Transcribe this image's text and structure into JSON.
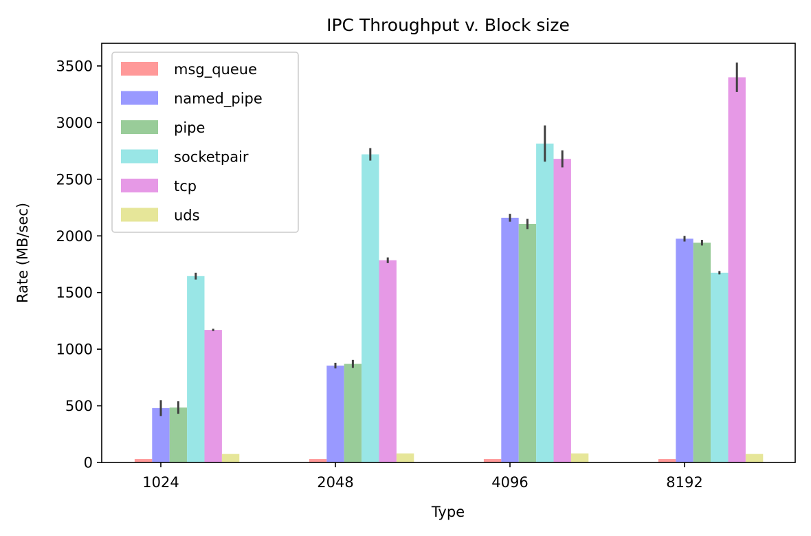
{
  "chart_data": {
    "type": "bar",
    "title": "IPC Throughput v. Block size",
    "xlabel": "Type",
    "ylabel": "Rate (MB/sec)",
    "categories": [
      "1024",
      "2048",
      "4096",
      "8192"
    ],
    "ylim": [
      0,
      3700
    ],
    "yticks": [
      0,
      500,
      1000,
      1500,
      2000,
      2500,
      3000,
      3500
    ],
    "grid": false,
    "legend_position": "top-left",
    "series": [
      {
        "name": "msg_queue",
        "color": "#ff9999",
        "values": [
          30,
          30,
          30,
          30
        ],
        "err": [
          0,
          0,
          0,
          0
        ]
      },
      {
        "name": "named_pipe",
        "color": "#9999ff",
        "values": [
          480,
          855,
          2160,
          1975
        ],
        "err": [
          70,
          25,
          35,
          25
        ]
      },
      {
        "name": "pipe",
        "color": "#99cc99",
        "values": [
          485,
          870,
          2105,
          1940
        ],
        "err": [
          55,
          35,
          45,
          25
        ]
      },
      {
        "name": "socketpair",
        "color": "#99e6e6",
        "values": [
          1645,
          2720,
          2815,
          1675
        ],
        "err": [
          30,
          55,
          160,
          15
        ]
      },
      {
        "name": "tcp",
        "color": "#e699e6",
        "values": [
          1170,
          1785,
          2680,
          3400
        ],
        "err": [
          10,
          25,
          75,
          130
        ]
      },
      {
        "name": "uds",
        "color": "#e6e699",
        "values": [
          75,
          80,
          80,
          75
        ],
        "err": [
          0,
          0,
          0,
          0
        ]
      }
    ]
  }
}
